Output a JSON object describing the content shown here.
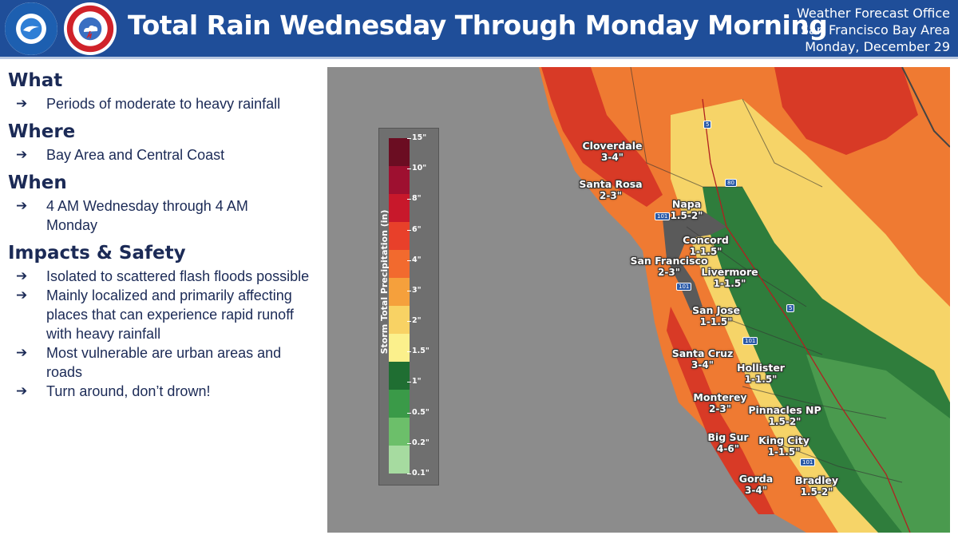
{
  "header": {
    "title": "Total Rain Wednesday Through Monday Morning",
    "office_line1": "Weather Forecast Office",
    "office_line2": "San Francisco Bay Area",
    "date": "Monday, December 29",
    "logos": [
      "noaa-logo",
      "nws-logo"
    ],
    "bar_color": "#1f4e99"
  },
  "sections": [
    {
      "heading": "What",
      "bullets": [
        "Periods of moderate to heavy rainfall"
      ]
    },
    {
      "heading": "Where",
      "bullets": [
        "Bay Area and Central Coast"
      ]
    },
    {
      "heading": "When",
      "bullets": [
        "4 AM Wednesday through 4 AM Monday"
      ]
    },
    {
      "heading": "Impacts & Safety",
      "bullets": [
        "Isolated to scattered flash floods possible",
        "Mainly localized and primarily affecting places that can experience rapid runoff with heavy rainfall",
        "Most vulnerable are urban areas and roads",
        "Turn around, don’t drown!"
      ]
    }
  ],
  "bullet_arrow": "➔",
  "legend": {
    "title": "Storm Total Precipitation (in)",
    "ticks": [
      "15\"",
      "10\"",
      "8\"",
      "6\"",
      "4\"",
      "3\"",
      "2\"",
      "1.5\"",
      "1\"",
      "0.5\"",
      "0.2\"",
      "0.1\""
    ],
    "colors": [
      "#6b0d22",
      "#9e1030",
      "#c8182b",
      "#e8402a",
      "#f26a2e",
      "#f5a03c",
      "#f8d264",
      "#fbf08c",
      "#1f6e32",
      "#3a9a48",
      "#6cbf6a",
      "#a6dba0"
    ]
  },
  "cities": [
    {
      "name": "Cloverdale",
      "amount": "3-4\""
    },
    {
      "name": "Santa Rosa",
      "amount": "2-3\""
    },
    {
      "name": "Napa",
      "amount": "1.5-2\""
    },
    {
      "name": "Concord",
      "amount": "1-1.5\""
    },
    {
      "name": "San Francisco",
      "amount": "2-3\""
    },
    {
      "name": "Livermore",
      "amount": "1-1.5\""
    },
    {
      "name": "San Jose",
      "amount": "1-1.5\""
    },
    {
      "name": "Santa Cruz",
      "amount": "3-4\""
    },
    {
      "name": "Hollister",
      "amount": "1-1.5\""
    },
    {
      "name": "Monterey",
      "amount": "2-3\""
    },
    {
      "name": "Pinnacles NP",
      "amount": "1.5-2\""
    },
    {
      "name": "Big Sur",
      "amount": "4-6\""
    },
    {
      "name": "King City",
      "amount": "1-1.5\""
    },
    {
      "name": "Gorda",
      "amount": "3-4\""
    },
    {
      "name": "Bradley",
      "amount": "1.5-2\""
    }
  ],
  "highway_shields": [
    "5",
    "80",
    "101",
    "101",
    "5",
    "101",
    "101"
  ]
}
